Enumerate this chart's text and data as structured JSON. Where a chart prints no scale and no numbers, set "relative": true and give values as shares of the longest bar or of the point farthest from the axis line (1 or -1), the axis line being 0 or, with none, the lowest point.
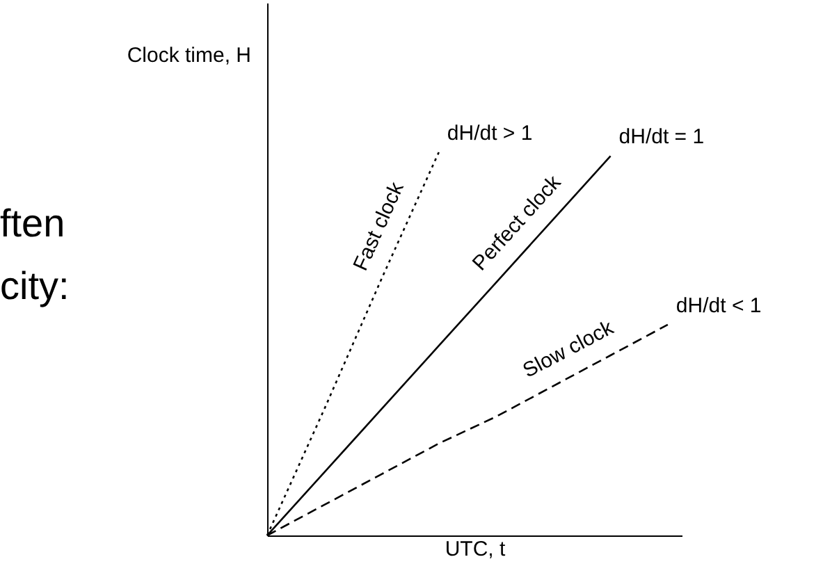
{
  "chart_data": {
    "type": "line",
    "relative": true,
    "xlabel": "UTC, t",
    "ylabel": "Clock time, H",
    "grid": false,
    "categories": [
      null,
      null,
      null,
      null,
      null,
      null,
      null,
      null
    ],
    "series": [
      {
        "name": "Fast clock",
        "color": "#000000",
        "line_style": "dotted",
        "values": [
          0,
          0.33,
          0.67,
          1,
          null,
          null,
          null,
          null
        ]
      },
      {
        "name": "Perfect clock",
        "color": "#000000",
        "line_style": "solid",
        "values": [
          0,
          0.165,
          0.33,
          0.495,
          0.66,
          0.825,
          0.99,
          null
        ]
      },
      {
        "name": "Slow clock",
        "color": "#000000",
        "line_style": "dashed",
        "values": [
          0,
          0.08,
          0.16,
          0.24,
          0.31,
          0.39,
          0.47,
          0.55
        ]
      }
    ],
    "annotations": [
      "dH/dt > 1",
      "dH/dt = 1",
      "dH/dt < 1",
      "ften",
      "city:"
    ]
  }
}
